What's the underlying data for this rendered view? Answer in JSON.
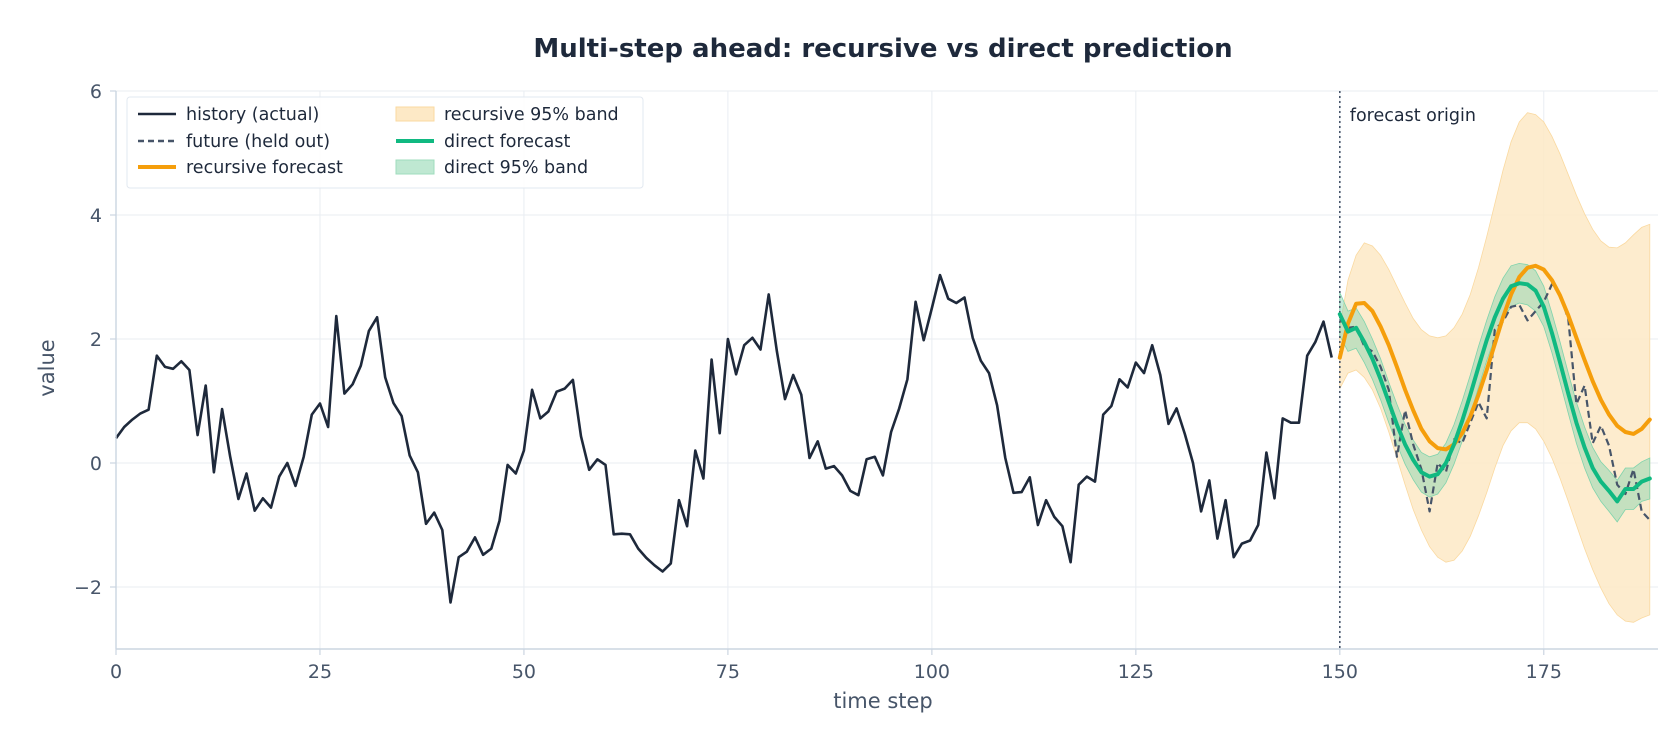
{
  "chart_data": {
    "type": "line",
    "title": "Multi-step ahead: recursive vs direct prediction",
    "xlabel": "time step",
    "ylabel": "value",
    "xlim": [
      0,
      189
    ],
    "ylim": [
      -3,
      6
    ],
    "xticks": [
      0,
      25,
      50,
      75,
      100,
      125,
      150,
      175
    ],
    "yticks": [
      -2,
      0,
      2,
      4,
      6
    ],
    "ytick_labels": [
      "−2",
      "0",
      "2",
      "4",
      "6"
    ],
    "grid": true,
    "legend_position": "upper-left",
    "annotation": {
      "text": "forecast origin",
      "x": 150
    },
    "colors": {
      "history": "#1e293b",
      "future": "#475569",
      "recursive": "#f59e0b",
      "recursive_band": "#fde9c6",
      "direct": "#10b981",
      "direct_band": "#bfe8d2",
      "grid": "#e9edf2",
      "axis": "#cbd5e1",
      "text": "#1e293b"
    },
    "legend": [
      {
        "key": "history",
        "label": "history (actual)",
        "style": "solid"
      },
      {
        "key": "future",
        "label": "future (held out)",
        "style": "dashed"
      },
      {
        "key": "recursive",
        "label": "recursive forecast",
        "style": "thick"
      },
      {
        "key": "recursive_band",
        "label": "recursive 95% band",
        "style": "band"
      },
      {
        "key": "direct",
        "label": "direct forecast",
        "style": "thick"
      },
      {
        "key": "direct_band",
        "label": "direct 95% band",
        "style": "band"
      }
    ],
    "series": [
      {
        "name": "history (actual)",
        "x_start": 0,
        "values": [
          0.4,
          0.58,
          0.7,
          0.8,
          0.86,
          1.73,
          1.55,
          1.52,
          1.64,
          1.5,
          0.45,
          1.25,
          -0.15,
          0.87,
          0.1,
          -0.58,
          -0.17,
          -0.77,
          -0.57,
          -0.72,
          -0.22,
          0.0,
          -0.37,
          0.1,
          0.78,
          0.96,
          0.58,
          2.37,
          1.12,
          1.27,
          1.57,
          2.13,
          2.35,
          1.38,
          0.97,
          0.76,
          0.12,
          -0.15,
          -0.98,
          -0.8,
          -1.08,
          -2.25,
          -1.52,
          -1.43,
          -1.2,
          -1.48,
          -1.38,
          -0.93,
          -0.03,
          -0.17,
          0.2,
          1.18,
          0.72,
          0.83,
          1.15,
          1.2,
          1.34,
          0.43,
          -0.11,
          0.06,
          -0.03,
          -1.15,
          -1.14,
          -1.15,
          -1.38,
          -1.53,
          -1.65,
          -1.75,
          -1.62,
          -0.6,
          -1.02,
          0.2,
          -0.25,
          1.67,
          0.48,
          2.0,
          1.43,
          1.9,
          2.02,
          1.83,
          2.72,
          1.8,
          1.03,
          1.42,
          1.1,
          0.08,
          0.35,
          -0.09,
          -0.05,
          -0.2,
          -0.45,
          -0.52,
          0.06,
          0.1,
          -0.2,
          0.5,
          0.88,
          1.35,
          2.6,
          1.98,
          2.5,
          3.03,
          2.65,
          2.58,
          2.67,
          2.02,
          1.65,
          1.45,
          0.93,
          0.08,
          -0.48,
          -0.47,
          -0.23,
          -1.0,
          -0.6,
          -0.87,
          -1.02,
          -1.6,
          -0.35,
          -0.22,
          -0.3,
          0.78,
          0.92,
          1.35,
          1.22,
          1.62,
          1.45,
          1.9,
          1.42,
          0.63,
          0.88,
          0.47,
          0.0,
          -0.78,
          -0.28,
          -1.22,
          -0.6,
          -1.52,
          -1.3,
          -1.25,
          -1.0,
          0.17,
          -0.57,
          0.72,
          0.65,
          0.65,
          1.73,
          1.95,
          2.28,
          1.7
        ]
      },
      {
        "name": "future (held out)",
        "x_start": 150,
        "values": [
          2.32,
          2.18,
          2.2,
          1.88,
          1.8,
          1.55,
          1.18,
          0.1,
          0.85,
          0.3,
          -0.1,
          -0.78,
          0.0,
          -0.15,
          0.38,
          0.32,
          0.65,
          0.98,
          0.72,
          2.15,
          2.28,
          2.52,
          2.55,
          2.3,
          2.45,
          2.6,
          2.88,
          2.72,
          2.32,
          0.95,
          1.25,
          0.32,
          0.6,
          0.28,
          -0.35,
          -0.5,
          -0.1,
          -0.78,
          -0.92
        ]
      },
      {
        "name": "recursive forecast",
        "x_start": 150,
        "values": [
          1.7,
          2.25,
          2.57,
          2.58,
          2.45,
          2.2,
          1.9,
          1.55,
          1.18,
          0.85,
          0.55,
          0.35,
          0.24,
          0.22,
          0.3,
          0.48,
          0.75,
          1.1,
          1.5,
          1.92,
          2.35,
          2.72,
          3.0,
          3.15,
          3.18,
          3.12,
          2.95,
          2.7,
          2.38,
          2.02,
          1.66,
          1.32,
          1.02,
          0.78,
          0.6,
          0.5,
          0.47,
          0.55,
          0.7
        ],
        "band_lower": [
          1.2,
          1.45,
          1.5,
          1.38,
          1.18,
          0.88,
          0.5,
          0.08,
          -0.35,
          -0.75,
          -1.08,
          -1.35,
          -1.52,
          -1.6,
          -1.57,
          -1.42,
          -1.18,
          -0.85,
          -0.48,
          -0.08,
          0.28,
          0.52,
          0.65,
          0.65,
          0.55,
          0.35,
          0.08,
          -0.25,
          -0.62,
          -1.0,
          -1.38,
          -1.72,
          -2.02,
          -2.27,
          -2.45,
          -2.55,
          -2.57,
          -2.5,
          -2.45
        ],
        "band_upper": [
          2.2,
          2.95,
          3.35,
          3.55,
          3.5,
          3.35,
          3.12,
          2.85,
          2.58,
          2.33,
          2.15,
          2.05,
          2.02,
          2.05,
          2.18,
          2.4,
          2.72,
          3.15,
          3.65,
          4.18,
          4.72,
          5.18,
          5.5,
          5.65,
          5.62,
          5.5,
          5.27,
          4.98,
          4.65,
          4.32,
          4.02,
          3.77,
          3.58,
          3.48,
          3.47,
          3.55,
          3.68,
          3.8,
          3.85
        ]
      },
      {
        "name": "direct forecast",
        "x_start": 150,
        "values": [
          2.4,
          2.12,
          2.18,
          1.95,
          1.68,
          1.35,
          0.98,
          0.62,
          0.3,
          0.05,
          -0.15,
          -0.22,
          -0.18,
          0.0,
          0.3,
          0.68,
          1.1,
          1.55,
          1.98,
          2.35,
          2.65,
          2.85,
          2.9,
          2.88,
          2.78,
          2.52,
          2.1,
          1.62,
          1.12,
          0.65,
          0.25,
          -0.08,
          -0.3,
          -0.45,
          -0.62,
          -0.42,
          -0.42,
          -0.3,
          -0.25
        ],
        "band_lower": [
          2.05,
          1.8,
          1.85,
          1.62,
          1.35,
          1.02,
          0.65,
          0.3,
          -0.02,
          -0.27,
          -0.47,
          -0.55,
          -0.5,
          -0.32,
          -0.02,
          0.35,
          0.78,
          1.22,
          1.65,
          2.02,
          2.32,
          2.52,
          2.58,
          2.55,
          2.45,
          2.2,
          1.78,
          1.3,
          0.8,
          0.32,
          -0.08,
          -0.4,
          -0.62,
          -0.78,
          -0.95,
          -0.75,
          -0.75,
          -0.62,
          -0.58
        ],
        "band_upper": [
          2.75,
          2.45,
          2.5,
          2.28,
          2.0,
          1.68,
          1.3,
          0.95,
          0.62,
          0.37,
          0.17,
          0.1,
          0.14,
          0.32,
          0.62,
          1.0,
          1.42,
          1.88,
          2.3,
          2.68,
          2.98,
          3.18,
          3.22,
          3.2,
          3.1,
          2.85,
          2.42,
          1.95,
          1.45,
          0.98,
          0.58,
          0.25,
          0.02,
          -0.12,
          -0.28,
          -0.08,
          -0.08,
          0.02,
          0.08
        ]
      }
    ]
  }
}
